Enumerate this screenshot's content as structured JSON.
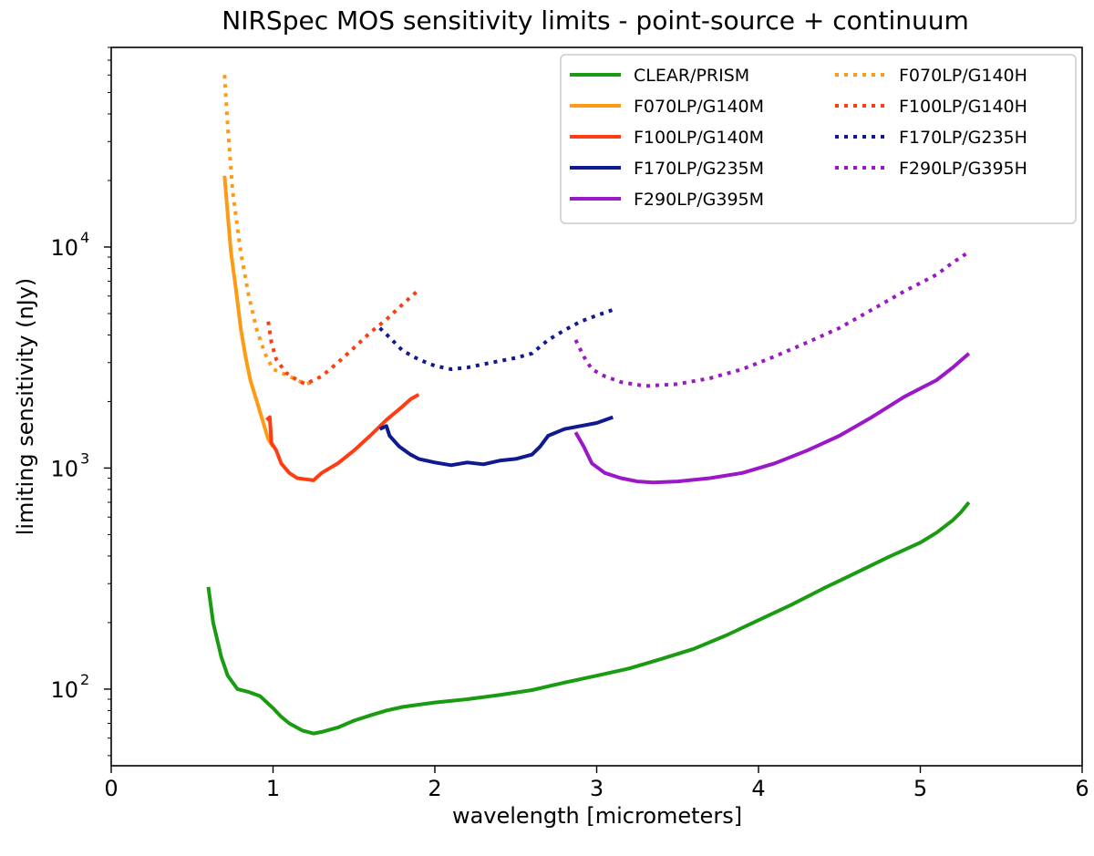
{
  "chart_data": {
    "type": "line",
    "title": "NIRSpec MOS sensitivity limits - point-source + continuum",
    "xlabel": "wavelength [micrometers]",
    "ylabel": "limiting sensitivity (nJy)",
    "xlim": [
      0,
      6
    ],
    "ylim": [
      45,
      80000
    ],
    "yscale": "log",
    "grid": false,
    "legend_position": "top-right",
    "x_ticks": [
      "0",
      "1",
      "2",
      "3",
      "4",
      "5",
      "6"
    ],
    "y_ticks": [
      {
        "base": "10",
        "exp": "2",
        "value": 100
      },
      {
        "base": "10",
        "exp": "3",
        "value": 1000
      },
      {
        "base": "10",
        "exp": "4",
        "value": 10000
      }
    ],
    "series": [
      {
        "name": "CLEAR/PRISM",
        "color": "#1a9b12",
        "style": "solid",
        "points": [
          [
            0.6,
            290
          ],
          [
            0.63,
            200
          ],
          [
            0.68,
            140
          ],
          [
            0.72,
            115
          ],
          [
            0.78,
            100
          ],
          [
            0.85,
            97
          ],
          [
            0.92,
            93
          ],
          [
            1.0,
            82
          ],
          [
            1.05,
            75
          ],
          [
            1.1,
            70
          ],
          [
            1.18,
            65
          ],
          [
            1.25,
            63
          ],
          [
            1.3,
            64
          ],
          [
            1.4,
            67
          ],
          [
            1.5,
            72
          ],
          [
            1.6,
            76
          ],
          [
            1.7,
            80
          ],
          [
            1.8,
            83
          ],
          [
            1.9,
            85
          ],
          [
            2.0,
            87
          ],
          [
            2.2,
            90
          ],
          [
            2.4,
            94
          ],
          [
            2.6,
            99
          ],
          [
            2.8,
            107
          ],
          [
            3.0,
            115
          ],
          [
            3.2,
            124
          ],
          [
            3.4,
            137
          ],
          [
            3.6,
            152
          ],
          [
            3.8,
            175
          ],
          [
            4.0,
            205
          ],
          [
            4.2,
            240
          ],
          [
            4.4,
            285
          ],
          [
            4.6,
            335
          ],
          [
            4.8,
            395
          ],
          [
            5.0,
            460
          ],
          [
            5.1,
            510
          ],
          [
            5.2,
            580
          ],
          [
            5.25,
            630
          ],
          [
            5.3,
            700
          ]
        ]
      },
      {
        "name": "F070LP/G140M",
        "color": "#ff9a14",
        "style": "solid",
        "points": [
          [
            0.7,
            21000
          ],
          [
            0.72,
            14000
          ],
          [
            0.74,
            9500
          ],
          [
            0.77,
            6500
          ],
          [
            0.8,
            4300
          ],
          [
            0.83,
            3200
          ],
          [
            0.86,
            2500
          ],
          [
            0.9,
            2000
          ],
          [
            0.94,
            1600
          ],
          [
            0.97,
            1350
          ],
          [
            1.0,
            1250
          ]
        ]
      },
      {
        "name": "F100LP/G140M",
        "color": "#ff3c12",
        "style": "solid",
        "points": [
          [
            0.96,
            1650
          ],
          [
            0.98,
            1700
          ],
          [
            0.99,
            1300
          ],
          [
            1.02,
            1200
          ],
          [
            1.05,
            1050
          ],
          [
            1.1,
            950
          ],
          [
            1.15,
            900
          ],
          [
            1.2,
            890
          ],
          [
            1.25,
            880
          ],
          [
            1.3,
            950
          ],
          [
            1.4,
            1050
          ],
          [
            1.5,
            1200
          ],
          [
            1.6,
            1400
          ],
          [
            1.7,
            1650
          ],
          [
            1.8,
            1900
          ],
          [
            1.85,
            2050
          ],
          [
            1.9,
            2150
          ]
        ]
      },
      {
        "name": "F170LP/G235M",
        "color": "#0f1a90",
        "style": "solid",
        "points": [
          [
            1.66,
            1500
          ],
          [
            1.7,
            1550
          ],
          [
            1.72,
            1400
          ],
          [
            1.78,
            1250
          ],
          [
            1.85,
            1150
          ],
          [
            1.9,
            1100
          ],
          [
            2.0,
            1060
          ],
          [
            2.1,
            1030
          ],
          [
            2.2,
            1060
          ],
          [
            2.3,
            1040
          ],
          [
            2.4,
            1080
          ],
          [
            2.5,
            1100
          ],
          [
            2.6,
            1150
          ],
          [
            2.65,
            1250
          ],
          [
            2.7,
            1400
          ],
          [
            2.8,
            1500
          ],
          [
            2.9,
            1550
          ],
          [
            3.0,
            1600
          ],
          [
            3.1,
            1700
          ]
        ]
      },
      {
        "name": "F290LP/G395M",
        "color": "#9b18c8",
        "style": "solid",
        "points": [
          [
            2.87,
            1450
          ],
          [
            2.92,
            1250
          ],
          [
            2.97,
            1050
          ],
          [
            3.05,
            950
          ],
          [
            3.15,
            900
          ],
          [
            3.25,
            870
          ],
          [
            3.35,
            860
          ],
          [
            3.5,
            870
          ],
          [
            3.7,
            900
          ],
          [
            3.9,
            950
          ],
          [
            4.1,
            1050
          ],
          [
            4.3,
            1200
          ],
          [
            4.5,
            1400
          ],
          [
            4.7,
            1700
          ],
          [
            4.9,
            2100
          ],
          [
            5.1,
            2500
          ],
          [
            5.2,
            2850
          ],
          [
            5.3,
            3300
          ]
        ]
      },
      {
        "name": "F070LP/G140H",
        "color": "#ff9a14",
        "style": "dotted",
        "points": [
          [
            0.7,
            60000
          ],
          [
            0.72,
            35000
          ],
          [
            0.75,
            18000
          ],
          [
            0.8,
            9500
          ],
          [
            0.85,
            6000
          ],
          [
            0.9,
            4200
          ],
          [
            0.95,
            3300
          ],
          [
            1.0,
            2800
          ],
          [
            1.1,
            2600
          ],
          [
            1.2,
            2400
          ],
          [
            1.25,
            2450
          ]
        ]
      },
      {
        "name": "F100LP/G140H",
        "color": "#ff3c12",
        "style": "dotted",
        "points": [
          [
            0.97,
            4600
          ],
          [
            0.99,
            3700
          ],
          [
            1.02,
            3100
          ],
          [
            1.08,
            2700
          ],
          [
            1.15,
            2500
          ],
          [
            1.2,
            2400
          ],
          [
            1.3,
            2600
          ],
          [
            1.4,
            3000
          ],
          [
            1.5,
            3500
          ],
          [
            1.6,
            4100
          ],
          [
            1.7,
            4700
          ],
          [
            1.8,
            5500
          ],
          [
            1.9,
            6400
          ]
        ]
      },
      {
        "name": "F170LP/G235H",
        "color": "#0f1a90",
        "style": "dotted",
        "points": [
          [
            1.66,
            4300
          ],
          [
            1.72,
            3900
          ],
          [
            1.8,
            3400
          ],
          [
            1.9,
            3100
          ],
          [
            2.0,
            2900
          ],
          [
            2.1,
            2800
          ],
          [
            2.2,
            2850
          ],
          [
            2.3,
            2950
          ],
          [
            2.4,
            3050
          ],
          [
            2.5,
            3150
          ],
          [
            2.6,
            3300
          ],
          [
            2.7,
            3800
          ],
          [
            2.8,
            4200
          ],
          [
            2.9,
            4600
          ],
          [
            3.0,
            4900
          ],
          [
            3.1,
            5200
          ]
        ]
      },
      {
        "name": "F290LP/G395H",
        "color": "#9b18c8",
        "style": "dotted",
        "points": [
          [
            2.87,
            3800
          ],
          [
            2.92,
            3200
          ],
          [
            2.97,
            2800
          ],
          [
            3.05,
            2600
          ],
          [
            3.15,
            2450
          ],
          [
            3.3,
            2350
          ],
          [
            3.5,
            2400
          ],
          [
            3.7,
            2550
          ],
          [
            3.9,
            2800
          ],
          [
            4.1,
            3200
          ],
          [
            4.3,
            3700
          ],
          [
            4.5,
            4300
          ],
          [
            4.7,
            5200
          ],
          [
            4.9,
            6300
          ],
          [
            5.1,
            7500
          ],
          [
            5.2,
            8500
          ],
          [
            5.3,
            9500
          ]
        ]
      }
    ]
  }
}
